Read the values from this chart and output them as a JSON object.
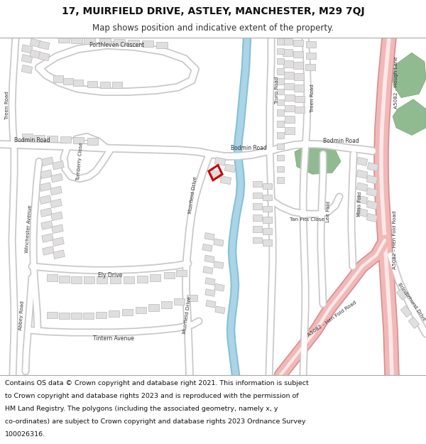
{
  "title_line1": "17, MUIRFIELD DRIVE, ASTLEY, MANCHESTER, M29 7QJ",
  "title_line2": "Map shows position and indicative extent of the property.",
  "footer": "Contains OS data © Crown copyright and database right 2021. This information is subject to Crown copyright and database rights 2023 and is reproduced with the permission of HM Land Registry. The polygons (including the associated geometry, namely x, y co-ordinates) are subject to Crown copyright and database rights 2023 Ordnance Survey 100026316.",
  "map_bg": "#f2f2ee",
  "road_color": "#ffffff",
  "road_outline": "#c8c8c8",
  "major_road_color": "#f2b8b8",
  "major_road_outline": "#d89090",
  "water_color": "#aad4e8",
  "green_color": "#90bb90",
  "property_color": "#cc0000",
  "building_color": "#e0dede",
  "building_outline": "#b8b8b8",
  "text_color": "#444444"
}
